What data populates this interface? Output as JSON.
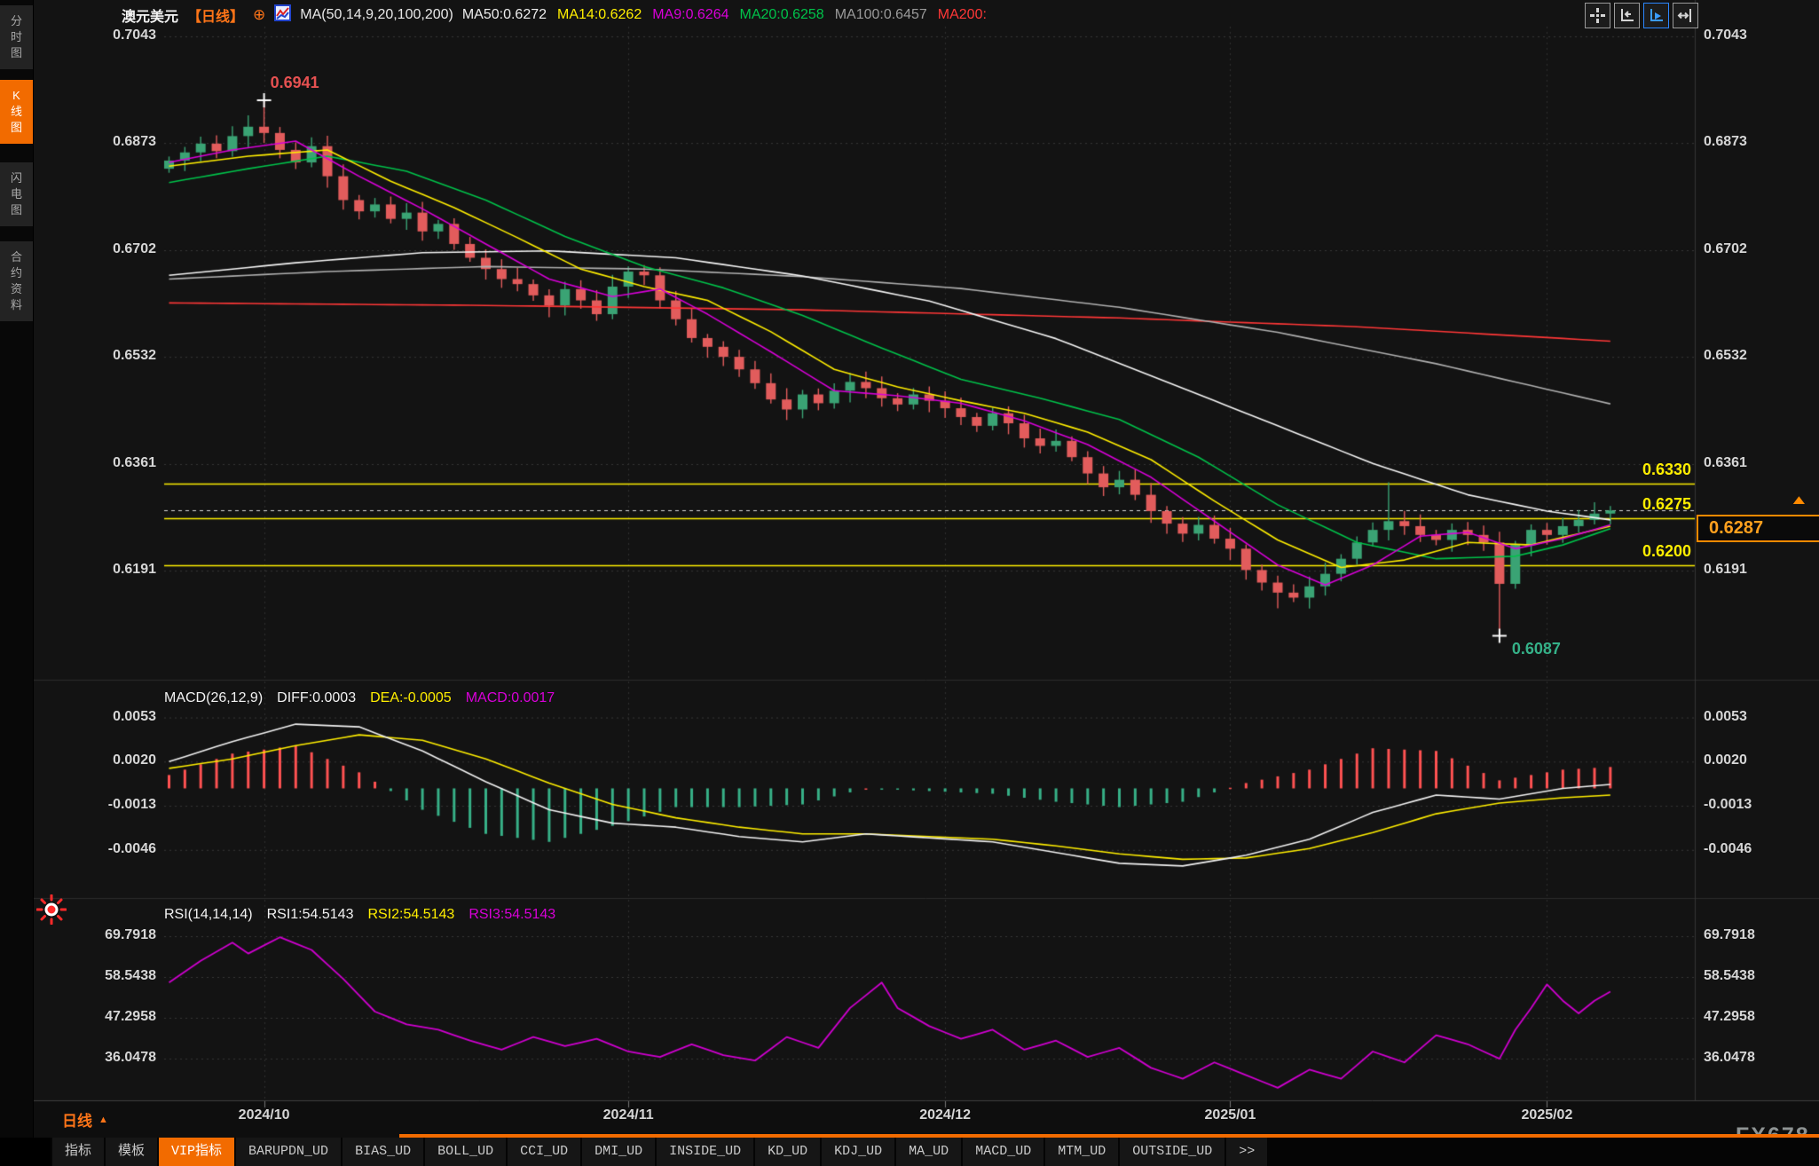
{
  "sidebar": {
    "items": [
      {
        "label": "分时图",
        "active": false
      },
      {
        "label": "K线图",
        "active": true
      },
      {
        "label": "闪电图",
        "active": false
      },
      {
        "label": "合约资料",
        "active": false
      }
    ]
  },
  "header": {
    "symbol": "澳元美元",
    "period": "【日线】",
    "ma_title": "MA(50,14,9,20,100,200)",
    "ma_values": [
      {
        "text": "MA50:0.6272",
        "color": "#ededed"
      },
      {
        "text": "MA14:0.6262",
        "color": "#ffee00"
      },
      {
        "text": "MA9:0.6264",
        "color": "#d800d8"
      },
      {
        "text": "MA20:0.6258",
        "color": "#00c24a"
      },
      {
        "text": "MA100:0.6457",
        "color": "#9a9a9a"
      },
      {
        "text": "MA200:",
        "color": "#ff3737"
      }
    ]
  },
  "topbar": {
    "icons": [
      {
        "name": "pan-icon",
        "active": false
      },
      {
        "name": "axis-scale-icon",
        "active": false
      },
      {
        "name": "axis-autoscale-icon",
        "active": true
      },
      {
        "name": "data-shift-icon",
        "active": false
      }
    ]
  },
  "macd_header": {
    "title": "MACD(26,12,9)",
    "diff": "DIFF:0.0003",
    "dea": "DEA:-0.0005",
    "macd": "MACD:0.0017"
  },
  "rsi_header": {
    "title": "RSI(14,14,14)",
    "rsi1": "RSI1:54.5143",
    "rsi2": "RSI2:54.5143",
    "rsi3": "RSI3:54.5143"
  },
  "axis_row": {
    "period_label": "日线"
  },
  "watermark": "FX678",
  "toolbar": {
    "items": [
      "指标",
      "模板",
      "VIP指标",
      "BARUPDN_UD",
      "BIAS_UD",
      "BOLL_UD",
      "CCI_UD",
      "DMI_UD",
      "INSIDE_UD",
      "KD_UD",
      "KDJ_UD",
      "MA_UD",
      "MACD_UD",
      "MTM_UD",
      "OUTSIDE_UD",
      ">>"
    ],
    "active": "VIP指标"
  },
  "chart_data": {
    "type": "candlestick",
    "symbol": "澳元美元",
    "period": "日线",
    "price_pane": {
      "ylim": [
        0.60468,
        0.70586
      ],
      "ticks": [
        "0.7043",
        "0.6873",
        "0.6702",
        "0.6532",
        "0.6361",
        "0.6191"
      ],
      "first_open": 0.6832,
      "closes": [
        0.6845,
        0.6858,
        0.6872,
        0.686,
        0.6884,
        0.6899,
        0.6889,
        0.6862,
        0.6842,
        0.6868,
        0.682,
        0.6782,
        0.6764,
        0.6775,
        0.6752,
        0.6762,
        0.6732,
        0.6744,
        0.6712,
        0.669,
        0.6672,
        0.6656,
        0.6648,
        0.663,
        0.6614,
        0.664,
        0.6622,
        0.66,
        0.6644,
        0.6668,
        0.6662,
        0.6622,
        0.6592,
        0.6562,
        0.6548,
        0.6532,
        0.6512,
        0.649,
        0.6464,
        0.6448,
        0.6472,
        0.6458,
        0.6478,
        0.6492,
        0.6482,
        0.6466,
        0.6456,
        0.6472,
        0.6462,
        0.645,
        0.6436,
        0.6422,
        0.6442,
        0.6426,
        0.6402,
        0.639,
        0.6398,
        0.6372,
        0.6346,
        0.6324,
        0.6336,
        0.6312,
        0.6286,
        0.6266,
        0.625,
        0.6264,
        0.6242,
        0.6226,
        0.6192,
        0.6172,
        0.6156,
        0.6148,
        0.6166,
        0.6186,
        0.621,
        0.6236,
        0.6256,
        0.627,
        0.6262,
        0.6248,
        0.624,
        0.6256,
        0.6248,
        0.6236,
        0.617,
        0.6232,
        0.6256,
        0.6248,
        0.6262,
        0.6272,
        0.6282,
        0.6287
      ],
      "default_wick": 0.0013,
      "wick_overrides": {
        "6": {
          "high": 0.6941
        },
        "70": {
          "low": 0.6131
        },
        "77": {
          "high": 0.6332
        },
        "84": {
          "low": 0.6087
        }
      },
      "up_color": "#3aa374",
      "down_color": "#e25c5c",
      "hlines": [
        {
          "value": 0.633,
          "label": "0.6330",
          "color": "#ffee00"
        },
        {
          "value": 0.6275,
          "label": "0.6275",
          "color": "#ffee00"
        },
        {
          "value": 0.62,
          "label": "0.6200",
          "color": "#ffee00"
        }
      ],
      "current_price": {
        "value": 0.6287,
        "label": "0.6287",
        "color": "#ff8a00"
      },
      "high_annotation": {
        "index": 6,
        "price": 0.6941,
        "label": "0.6941"
      },
      "low_annotation": {
        "index": 84,
        "price": 0.6087,
        "label": "0.6087"
      },
      "ma_lines": [
        {
          "name": "MA200",
          "color": "#ff3737",
          "points": [
            [
              0,
              0.6618
            ],
            [
              20,
              0.6614
            ],
            [
              40,
              0.6607
            ],
            [
              60,
              0.6594
            ],
            [
              75,
              0.658
            ],
            [
              91,
              0.6557
            ]
          ]
        },
        {
          "name": "MA100",
          "color": "#b0b0b0",
          "points": [
            [
              0,
              0.6656
            ],
            [
              10,
              0.6668
            ],
            [
              20,
              0.6676
            ],
            [
              30,
              0.6672
            ],
            [
              40,
              0.666
            ],
            [
              50,
              0.6641
            ],
            [
              60,
              0.6611
            ],
            [
              70,
              0.6571
            ],
            [
              80,
              0.6521
            ],
            [
              91,
              0.6457
            ]
          ]
        },
        {
          "name": "MA50",
          "color": "#f5f5f5",
          "points": [
            [
              0,
              0.6662
            ],
            [
              8,
              0.6682
            ],
            [
              16,
              0.6698
            ],
            [
              24,
              0.6701
            ],
            [
              32,
              0.669
            ],
            [
              40,
              0.6661
            ],
            [
              48,
              0.6621
            ],
            [
              56,
              0.6561
            ],
            [
              64,
              0.6482
            ],
            [
              70,
              0.6422
            ],
            [
              76,
              0.6362
            ],
            [
              82,
              0.6312
            ],
            [
              87,
              0.6286
            ],
            [
              91,
              0.6272
            ]
          ]
        },
        {
          "name": "MA20",
          "color": "#00c24a",
          "points": [
            [
              0,
              0.681
            ],
            [
              5,
              0.6832
            ],
            [
              10,
              0.6852
            ],
            [
              15,
              0.6828
            ],
            [
              20,
              0.6782
            ],
            [
              25,
              0.6724
            ],
            [
              30,
              0.6676
            ],
            [
              35,
              0.6642
            ],
            [
              40,
              0.6598
            ],
            [
              45,
              0.6546
            ],
            [
              50,
              0.6496
            ],
            [
              55,
              0.6466
            ],
            [
              60,
              0.6432
            ],
            [
              65,
              0.6372
            ],
            [
              70,
              0.6296
            ],
            [
              75,
              0.6236
            ],
            [
              80,
              0.621
            ],
            [
              85,
              0.6214
            ],
            [
              88,
              0.6232
            ],
            [
              91,
              0.6258
            ]
          ]
        },
        {
          "name": "MA14",
          "color": "#ffee00",
          "points": [
            [
              0,
              0.6836
            ],
            [
              5,
              0.6852
            ],
            [
              10,
              0.6862
            ],
            [
              14,
              0.6812
            ],
            [
              18,
              0.677
            ],
            [
              22,
              0.6722
            ],
            [
              26,
              0.6672
            ],
            [
              30,
              0.6644
            ],
            [
              34,
              0.6622
            ],
            [
              38,
              0.6572
            ],
            [
              42,
              0.6512
            ],
            [
              46,
              0.6484
            ],
            [
              50,
              0.6462
            ],
            [
              54,
              0.6442
            ],
            [
              58,
              0.6412
            ],
            [
              62,
              0.6368
            ],
            [
              66,
              0.6302
            ],
            [
              70,
              0.624
            ],
            [
              74,
              0.6196
            ],
            [
              78,
              0.6208
            ],
            [
              82,
              0.6236
            ],
            [
              86,
              0.6232
            ],
            [
              91,
              0.6262
            ]
          ]
        },
        {
          "name": "MA9",
          "color": "#d800d8",
          "points": [
            [
              0,
              0.6842
            ],
            [
              4,
              0.6862
            ],
            [
              8,
              0.6876
            ],
            [
              12,
              0.682
            ],
            [
              16,
              0.6768
            ],
            [
              20,
              0.6712
            ],
            [
              24,
              0.6656
            ],
            [
              28,
              0.6628
            ],
            [
              31,
              0.664
            ],
            [
              34,
              0.66
            ],
            [
              38,
              0.654
            ],
            [
              42,
              0.6478
            ],
            [
              46,
              0.647
            ],
            [
              50,
              0.6458
            ],
            [
              54,
              0.643
            ],
            [
              58,
              0.6392
            ],
            [
              62,
              0.634
            ],
            [
              66,
              0.627
            ],
            [
              70,
              0.62
            ],
            [
              73,
              0.6168
            ],
            [
              76,
              0.62
            ],
            [
              79,
              0.6246
            ],
            [
              82,
              0.6252
            ],
            [
              85,
              0.6226
            ],
            [
              88,
              0.6242
            ],
            [
              91,
              0.6264
            ]
          ]
        }
      ]
    },
    "macd_pane": {
      "ylim": [
        -0.0074,
        0.0062
      ],
      "ticks": [
        "0.0053",
        "0.0020",
        "-0.0013",
        "-0.0046"
      ],
      "diff_color": "#f2f2f2",
      "dea_color": "#ffee00",
      "hist_up_color": "#ff5252",
      "hist_down_color": "#37b087",
      "diff_points": [
        [
          0,
          0.002
        ],
        [
          4,
          0.0035
        ],
        [
          8,
          0.0048
        ],
        [
          12,
          0.0046
        ],
        [
          16,
          0.0028
        ],
        [
          20,
          0.0005
        ],
        [
          24,
          -0.0016
        ],
        [
          28,
          -0.0026
        ],
        [
          32,
          -0.0029
        ],
        [
          36,
          -0.0036
        ],
        [
          40,
          -0.004
        ],
        [
          44,
          -0.0034
        ],
        [
          48,
          -0.0037
        ],
        [
          52,
          -0.004
        ],
        [
          56,
          -0.0048
        ],
        [
          60,
          -0.0056
        ],
        [
          64,
          -0.0058
        ],
        [
          68,
          -0.005
        ],
        [
          72,
          -0.0038
        ],
        [
          76,
          -0.0018
        ],
        [
          80,
          -0.0005
        ],
        [
          84,
          -0.0008
        ],
        [
          88,
          0.0
        ],
        [
          91,
          0.0003
        ]
      ],
      "dea_points": [
        [
          0,
          0.0015
        ],
        [
          4,
          0.0022
        ],
        [
          8,
          0.0032
        ],
        [
          12,
          0.004
        ],
        [
          16,
          0.0036
        ],
        [
          20,
          0.0022
        ],
        [
          24,
          0.0004
        ],
        [
          28,
          -0.0012
        ],
        [
          32,
          -0.0022
        ],
        [
          36,
          -0.0029
        ],
        [
          40,
          -0.0034
        ],
        [
          44,
          -0.0034
        ],
        [
          48,
          -0.0036
        ],
        [
          52,
          -0.0038
        ],
        [
          56,
          -0.0043
        ],
        [
          60,
          -0.0049
        ],
        [
          64,
          -0.0053
        ],
        [
          68,
          -0.0052
        ],
        [
          72,
          -0.0045
        ],
        [
          76,
          -0.0033
        ],
        [
          80,
          -0.0019
        ],
        [
          84,
          -0.0011
        ],
        [
          88,
          -0.0007
        ],
        [
          91,
          -0.0005
        ]
      ]
    },
    "rsi_pane": {
      "ylim": [
        26.5,
        71.5
      ],
      "ticks": [
        "69.7918",
        "58.5438",
        "47.2958",
        "36.0478"
      ],
      "color": "#cf00cf",
      "points": [
        [
          0,
          57
        ],
        [
          2,
          63
        ],
        [
          4,
          68
        ],
        [
          5,
          65
        ],
        [
          7,
          69.5
        ],
        [
          9,
          66
        ],
        [
          11,
          58
        ],
        [
          13,
          49
        ],
        [
          15,
          45.5
        ],
        [
          17,
          44
        ],
        [
          19,
          41
        ],
        [
          21,
          38.5
        ],
        [
          23,
          42
        ],
        [
          25,
          39.5
        ],
        [
          27,
          41.5
        ],
        [
          29,
          38
        ],
        [
          31,
          36.5
        ],
        [
          33,
          40
        ],
        [
          35,
          37
        ],
        [
          37,
          35.5
        ],
        [
          39,
          42
        ],
        [
          41,
          39
        ],
        [
          43,
          50
        ],
        [
          45,
          57
        ],
        [
          46,
          50
        ],
        [
          48,
          45
        ],
        [
          50,
          41.5
        ],
        [
          52,
          44
        ],
        [
          54,
          38.5
        ],
        [
          56,
          41
        ],
        [
          58,
          36.5
        ],
        [
          60,
          39
        ],
        [
          62,
          33.5
        ],
        [
          64,
          30.5
        ],
        [
          66,
          35
        ],
        [
          68,
          31.5
        ],
        [
          70,
          28
        ],
        [
          72,
          33
        ],
        [
          74,
          30.5
        ],
        [
          76,
          38
        ],
        [
          78,
          35
        ],
        [
          80,
          42.5
        ],
        [
          82,
          40
        ],
        [
          84,
          36
        ],
        [
          85,
          44
        ],
        [
          86,
          50
        ],
        [
          87,
          56.5
        ],
        [
          88,
          52
        ],
        [
          89,
          48.5
        ],
        [
          90,
          52
        ],
        [
          91,
          54.5
        ]
      ],
      "legend_note": ""
    },
    "x_axis": {
      "labels": [
        {
          "label": "2024/10",
          "index": 6
        },
        {
          "label": "2024/11",
          "index": 29
        },
        {
          "label": "2024/12",
          "index": 49
        },
        {
          "label": "2025/01",
          "index": 67
        },
        {
          "label": "2025/02",
          "index": 87
        }
      ]
    }
  }
}
